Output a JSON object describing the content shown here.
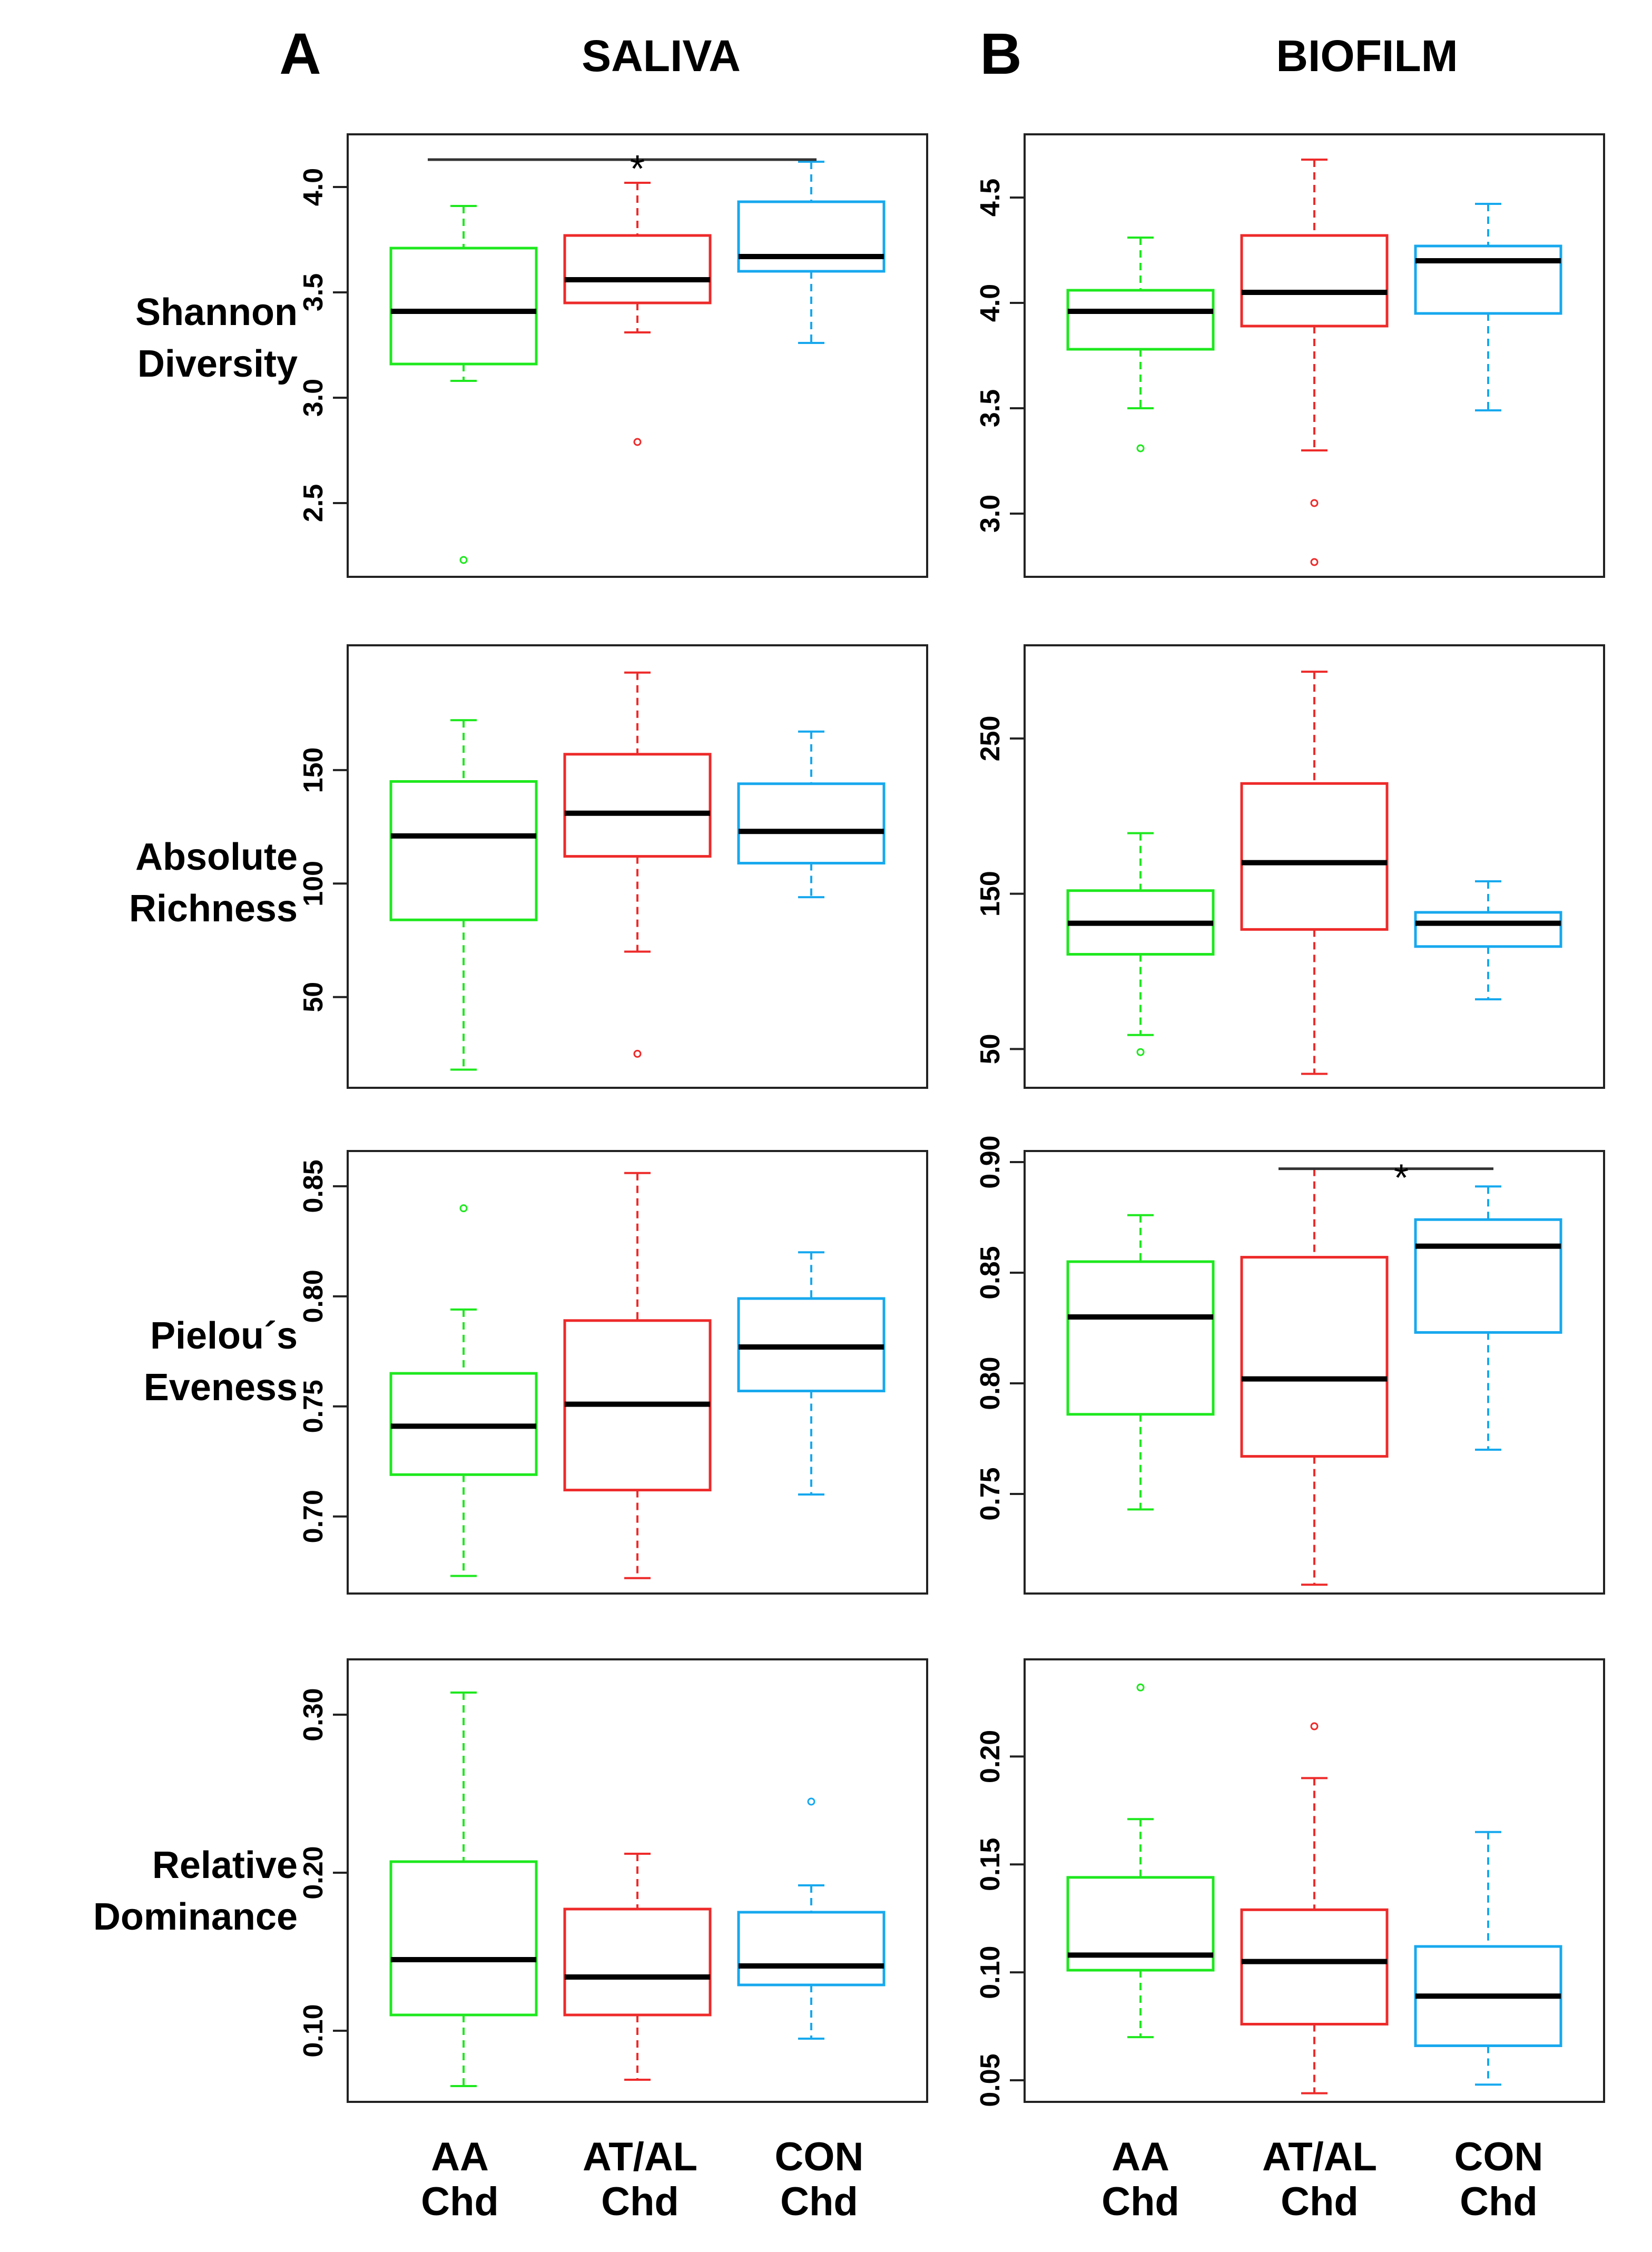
{
  "headers": {
    "panel_a": "A",
    "panel_b": "B",
    "saliva": "SALIVA",
    "biofilm": "BIOFILM"
  },
  "row_labels": [
    [
      "Shannon",
      "Diversity"
    ],
    [
      "Absolute",
      "Richness"
    ],
    [
      "Pielou´s",
      "Eveness"
    ],
    [
      "Relative",
      "Dominance"
    ]
  ],
  "groups": [
    {
      "line1": "AA",
      "line2": "Chd",
      "color": "#1ee81e"
    },
    {
      "line1": "AT/AL",
      "line2": "Chd",
      "color": "#ee2a2a"
    },
    {
      "line1": "CON",
      "line2": "Chd",
      "color": "#17a8ee"
    }
  ],
  "chart_data": [
    {
      "type": "box",
      "column": "SALIVA",
      "metric": "Shannon Diversity",
      "ylim": [
        2.15,
        4.25
      ],
      "ticks": [
        2.5,
        3.0,
        3.5,
        4.0
      ],
      "tick_labels": [
        "2.5",
        "3.0",
        "3.5",
        "4.0"
      ],
      "boxes": [
        {
          "group": "AA Chd",
          "min": 3.08,
          "q1": 3.16,
          "median": 3.41,
          "q3": 3.71,
          "max": 3.91,
          "outliers": [
            2.23
          ]
        },
        {
          "group": "AT/AL Chd",
          "min": 3.31,
          "q1": 3.45,
          "median": 3.56,
          "q3": 3.77,
          "max": 4.02,
          "outliers": [
            2.79
          ]
        },
        {
          "group": "CON Chd",
          "min": 3.26,
          "q1": 3.6,
          "median": 3.67,
          "q3": 3.93,
          "max": 4.12,
          "outliers": []
        }
      ],
      "significance": {
        "from": 0,
        "to": 2,
        "label": "*",
        "level": 4.13
      }
    },
    {
      "type": "box",
      "column": "BIOFILM",
      "metric": "Shannon Diversity",
      "ylim": [
        2.7,
        4.8
      ],
      "ticks": [
        3.0,
        3.5,
        4.0,
        4.5
      ],
      "tick_labels": [
        "3.0",
        "3.5",
        "4.0",
        "4.5"
      ],
      "boxes": [
        {
          "group": "AA Chd",
          "min": 3.5,
          "q1": 3.78,
          "median": 3.96,
          "q3": 4.06,
          "max": 4.31,
          "outliers": [
            3.31
          ]
        },
        {
          "group": "AT/AL Chd",
          "min": 3.3,
          "q1": 3.89,
          "median": 4.05,
          "q3": 4.32,
          "max": 4.68,
          "outliers": [
            3.05,
            2.77
          ]
        },
        {
          "group": "CON Chd",
          "min": 3.49,
          "q1": 3.95,
          "median": 4.2,
          "q3": 4.27,
          "max": 4.47,
          "outliers": []
        }
      ]
    },
    {
      "type": "box",
      "column": "SALIVA",
      "metric": "Absolute Richness",
      "ylim": [
        10,
        205
      ],
      "ticks": [
        50,
        100,
        150
      ],
      "tick_labels": [
        "50",
        "100",
        "150"
      ],
      "boxes": [
        {
          "group": "AA Chd",
          "min": 18,
          "q1": 84,
          "median": 121,
          "q3": 145,
          "max": 172,
          "outliers": []
        },
        {
          "group": "AT/AL Chd",
          "min": 70,
          "q1": 112,
          "median": 131,
          "q3": 157,
          "max": 193,
          "outliers": [
            25
          ]
        },
        {
          "group": "CON Chd",
          "min": 94,
          "q1": 109,
          "median": 123,
          "q3": 144,
          "max": 167,
          "outliers": []
        }
      ]
    },
    {
      "type": "box",
      "column": "BIOFILM",
      "metric": "Absolute Richness",
      "ylim": [
        25,
        310
      ],
      "ticks": [
        50,
        150,
        250
      ],
      "tick_labels": [
        "50",
        "150",
        "250"
      ],
      "boxes": [
        {
          "group": "AA Chd",
          "min": 59,
          "q1": 111,
          "median": 131,
          "q3": 152,
          "max": 189,
          "outliers": [
            48
          ]
        },
        {
          "group": "AT/AL Chd",
          "min": 34,
          "q1": 127,
          "median": 170,
          "q3": 221,
          "max": 293,
          "outliers": []
        },
        {
          "group": "CON Chd",
          "min": 82,
          "q1": 116,
          "median": 131,
          "q3": 138,
          "max": 158,
          "outliers": []
        }
      ]
    },
    {
      "type": "box",
      "column": "SALIVA",
      "metric": "Pielou´s Eveness",
      "ylim": [
        0.665,
        0.866
      ],
      "ticks": [
        0.7,
        0.75,
        0.8,
        0.85
      ],
      "tick_labels": [
        "0.70",
        "0.75",
        "0.80",
        "0.85"
      ],
      "boxes": [
        {
          "group": "AA Chd",
          "min": 0.673,
          "q1": 0.719,
          "median": 0.741,
          "q3": 0.765,
          "max": 0.794,
          "outliers": [
            0.84
          ]
        },
        {
          "group": "AT/AL Chd",
          "min": 0.672,
          "q1": 0.712,
          "median": 0.751,
          "q3": 0.789,
          "max": 0.856,
          "outliers": []
        },
        {
          "group": "CON Chd",
          "min": 0.71,
          "q1": 0.757,
          "median": 0.777,
          "q3": 0.799,
          "max": 0.82,
          "outliers": []
        }
      ]
    },
    {
      "type": "box",
      "column": "BIOFILM",
      "metric": "Pielou´s Eveness",
      "ylim": [
        0.705,
        0.905
      ],
      "ticks": [
        0.75,
        0.8,
        0.85,
        0.9
      ],
      "tick_labels": [
        "0.75",
        "0.80",
        "0.85",
        "0.90"
      ],
      "boxes": [
        {
          "group": "AA Chd",
          "min": 0.743,
          "q1": 0.786,
          "median": 0.83,
          "q3": 0.855,
          "max": 0.876,
          "outliers": []
        },
        {
          "group": "AT/AL Chd",
          "min": 0.709,
          "q1": 0.767,
          "median": 0.802,
          "q3": 0.857,
          "max": 0.897,
          "outliers": []
        },
        {
          "group": "CON Chd",
          "min": 0.77,
          "q1": 0.823,
          "median": 0.862,
          "q3": 0.874,
          "max": 0.889,
          "outliers": []
        }
      ],
      "significance": {
        "from": 1,
        "to": 2,
        "label": "*",
        "level": 0.897
      }
    },
    {
      "type": "box",
      "column": "SALIVA",
      "metric": "Relative Dominance",
      "ylim": [
        0.055,
        0.335
      ],
      "ticks": [
        0.1,
        0.2,
        0.3
      ],
      "tick_labels": [
        "0.10",
        "0.20",
        "0.30"
      ],
      "boxes": [
        {
          "group": "AA Chd",
          "min": 0.065,
          "q1": 0.11,
          "median": 0.145,
          "q3": 0.207,
          "max": 0.314,
          "outliers": []
        },
        {
          "group": "AT/AL Chd",
          "min": 0.069,
          "q1": 0.11,
          "median": 0.134,
          "q3": 0.177,
          "max": 0.212,
          "outliers": []
        },
        {
          "group": "CON Chd",
          "min": 0.095,
          "q1": 0.129,
          "median": 0.141,
          "q3": 0.175,
          "max": 0.192,
          "outliers": [
            0.245
          ]
        }
      ]
    },
    {
      "type": "box",
      "column": "BIOFILM",
      "metric": "Relative Dominance",
      "ylim": [
        0.04,
        0.245
      ],
      "ticks": [
        0.05,
        0.1,
        0.15,
        0.2
      ],
      "tick_labels": [
        "0.05",
        "0.10",
        "0.15",
        "0.20"
      ],
      "boxes": [
        {
          "group": "AA Chd",
          "min": 0.07,
          "q1": 0.101,
          "median": 0.108,
          "q3": 0.144,
          "max": 0.171,
          "outliers": [
            0.232
          ]
        },
        {
          "group": "AT/AL Chd",
          "min": 0.044,
          "q1": 0.076,
          "median": 0.105,
          "q3": 0.129,
          "max": 0.19,
          "outliers": [
            0.214
          ]
        },
        {
          "group": "CON Chd",
          "min": 0.048,
          "q1": 0.066,
          "median": 0.089,
          "q3": 0.112,
          "max": 0.165,
          "outliers": []
        }
      ]
    }
  ]
}
